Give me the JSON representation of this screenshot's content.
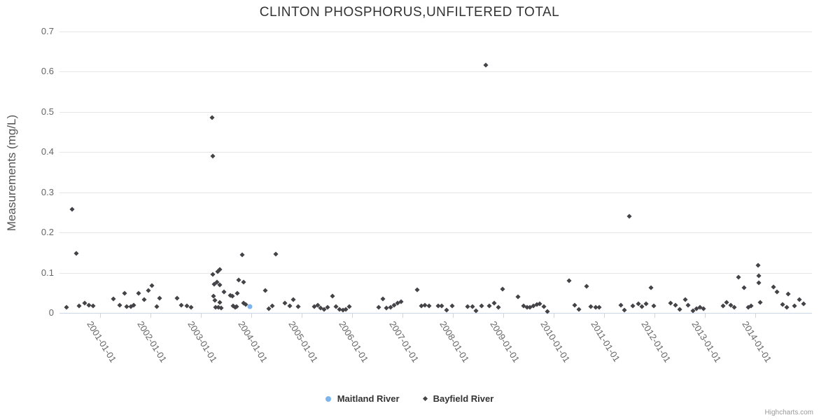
{
  "chart": {
    "credits_label": "Highcharts.com"
  },
  "chart_data": {
    "type": "scatter",
    "title": "CLINTON PHOSPHORUS,UNFILTERED TOTAL",
    "xlabel": "",
    "ylabel": "Measurements (mg/L)",
    "ylim": [
      0,
      0.7
    ],
    "yticks": [
      0,
      0.1,
      0.2,
      0.3,
      0.4,
      0.5,
      0.6,
      0.7
    ],
    "xticks": [
      "2001-01-01",
      "2002-01-01",
      "2003-01-01",
      "2004-01-01",
      "2005-01-01",
      "2006-01-01",
      "2007-01-01",
      "2008-01-01",
      "2009-01-01",
      "2010-01-01",
      "2011-01-01",
      "2012-01-01",
      "2013-01-01",
      "2014-01-01"
    ],
    "x_unit": "decimal-year",
    "grid": "horizontal-only",
    "legend_position": "bottom-center",
    "series": [
      {
        "name": "Maitland River",
        "color": "#7cb5ec",
        "marker": "circle",
        "points": [
          [
            2003.97,
            0.015
          ]
        ]
      },
      {
        "name": "Bayfield River",
        "color": "#434348",
        "marker": "diamond",
        "points": [
          [
            2000.33,
            0.014
          ],
          [
            2000.44,
            0.258
          ],
          [
            2000.53,
            0.148
          ],
          [
            2000.58,
            0.017
          ],
          [
            2000.69,
            0.024
          ],
          [
            2000.78,
            0.019
          ],
          [
            2000.86,
            0.017
          ],
          [
            2001.26,
            0.035
          ],
          [
            2001.39,
            0.019
          ],
          [
            2001.49,
            0.049
          ],
          [
            2001.53,
            0.016
          ],
          [
            2001.61,
            0.016
          ],
          [
            2001.67,
            0.019
          ],
          [
            2001.76,
            0.049
          ],
          [
            2001.88,
            0.033
          ],
          [
            2001.96,
            0.056
          ],
          [
            2002.03,
            0.068
          ],
          [
            2002.13,
            0.016
          ],
          [
            2002.18,
            0.037
          ],
          [
            2002.53,
            0.037
          ],
          [
            2002.61,
            0.019
          ],
          [
            2002.72,
            0.017
          ],
          [
            2002.81,
            0.014
          ],
          [
            2003.22,
            0.485
          ],
          [
            2003.24,
            0.39
          ],
          [
            2003.24,
            0.096
          ],
          [
            2003.26,
            0.071
          ],
          [
            2003.25,
            0.042
          ],
          [
            2003.28,
            0.031
          ],
          [
            2003.29,
            0.014
          ],
          [
            2003.32,
            0.077
          ],
          [
            2003.33,
            0.103
          ],
          [
            2003.35,
            0.014
          ],
          [
            2003.38,
            0.108
          ],
          [
            2003.38,
            0.07
          ],
          [
            2003.38,
            0.026
          ],
          [
            2003.4,
            0.012
          ],
          [
            2003.46,
            0.052
          ],
          [
            2003.58,
            0.044
          ],
          [
            2003.63,
            0.042
          ],
          [
            2003.64,
            0.017
          ],
          [
            2003.68,
            0.014
          ],
          [
            2003.71,
            0.016
          ],
          [
            2003.72,
            0.049
          ],
          [
            2003.75,
            0.082
          ],
          [
            2003.82,
            0.145
          ],
          [
            2003.85,
            0.077
          ],
          [
            2003.85,
            0.024
          ],
          [
            2003.89,
            0.021
          ],
          [
            2004.28,
            0.056
          ],
          [
            2004.35,
            0.01
          ],
          [
            2004.42,
            0.017
          ],
          [
            2004.49,
            0.146
          ],
          [
            2004.67,
            0.024
          ],
          [
            2004.76,
            0.017
          ],
          [
            2004.83,
            0.033
          ],
          [
            2004.93,
            0.016
          ],
          [
            2005.25,
            0.016
          ],
          [
            2005.32,
            0.019
          ],
          [
            2005.38,
            0.012
          ],
          [
            2005.44,
            0.009
          ],
          [
            2005.51,
            0.014
          ],
          [
            2005.61,
            0.042
          ],
          [
            2005.68,
            0.016
          ],
          [
            2005.75,
            0.009
          ],
          [
            2005.82,
            0.007
          ],
          [
            2005.88,
            0.009
          ],
          [
            2005.94,
            0.016
          ],
          [
            2006.53,
            0.014
          ],
          [
            2006.61,
            0.035
          ],
          [
            2006.68,
            0.012
          ],
          [
            2006.76,
            0.014
          ],
          [
            2006.83,
            0.019
          ],
          [
            2006.9,
            0.024
          ],
          [
            2006.97,
            0.028
          ],
          [
            2007.29,
            0.057
          ],
          [
            2007.38,
            0.017
          ],
          [
            2007.44,
            0.019
          ],
          [
            2007.53,
            0.017
          ],
          [
            2007.71,
            0.017
          ],
          [
            2007.78,
            0.017
          ],
          [
            2007.88,
            0.007
          ],
          [
            2007.99,
            0.017
          ],
          [
            2008.29,
            0.016
          ],
          [
            2008.39,
            0.016
          ],
          [
            2008.46,
            0.005
          ],
          [
            2008.57,
            0.017
          ],
          [
            2008.65,
            0.617
          ],
          [
            2008.72,
            0.017
          ],
          [
            2008.82,
            0.024
          ],
          [
            2008.9,
            0.014
          ],
          [
            2008.99,
            0.059
          ],
          [
            2009.29,
            0.04
          ],
          [
            2009.4,
            0.017
          ],
          [
            2009.47,
            0.014
          ],
          [
            2009.53,
            0.014
          ],
          [
            2009.6,
            0.017
          ],
          [
            2009.67,
            0.021
          ],
          [
            2009.72,
            0.023
          ],
          [
            2009.81,
            0.016
          ],
          [
            2009.88,
            0.003
          ],
          [
            2010.31,
            0.08
          ],
          [
            2010.42,
            0.019
          ],
          [
            2010.5,
            0.009
          ],
          [
            2010.65,
            0.066
          ],
          [
            2010.74,
            0.016
          ],
          [
            2010.83,
            0.014
          ],
          [
            2010.9,
            0.014
          ],
          [
            2011.33,
            0.019
          ],
          [
            2011.4,
            0.007
          ],
          [
            2011.5,
            0.24
          ],
          [
            2011.57,
            0.017
          ],
          [
            2011.68,
            0.022
          ],
          [
            2011.75,
            0.016
          ],
          [
            2011.83,
            0.022
          ],
          [
            2011.93,
            0.063
          ],
          [
            2011.99,
            0.017
          ],
          [
            2012.32,
            0.024
          ],
          [
            2012.42,
            0.019
          ],
          [
            2012.5,
            0.009
          ],
          [
            2012.61,
            0.033
          ],
          [
            2012.67,
            0.019
          ],
          [
            2012.76,
            0.005
          ],
          [
            2012.83,
            0.01
          ],
          [
            2012.9,
            0.014
          ],
          [
            2012.97,
            0.01
          ],
          [
            2013.36,
            0.017
          ],
          [
            2013.43,
            0.026
          ],
          [
            2013.51,
            0.019
          ],
          [
            2013.58,
            0.014
          ],
          [
            2013.67,
            0.089
          ],
          [
            2013.78,
            0.063
          ],
          [
            2013.86,
            0.014
          ],
          [
            2013.92,
            0.017
          ],
          [
            2014.06,
            0.118
          ],
          [
            2014.07,
            0.092
          ],
          [
            2014.07,
            0.075
          ],
          [
            2014.1,
            0.026
          ],
          [
            2014.36,
            0.064
          ],
          [
            2014.43,
            0.052
          ],
          [
            2014.54,
            0.021
          ],
          [
            2014.63,
            0.014
          ],
          [
            2014.65,
            0.047
          ],
          [
            2014.78,
            0.017
          ],
          [
            2014.88,
            0.033
          ],
          [
            2014.96,
            0.022
          ]
        ]
      }
    ]
  },
  "colors": {
    "series_maitland": "#7cb5ec",
    "series_bayfield": "#434348",
    "grid": "#e6e6e6",
    "axis_line": "#ccd6eb",
    "title_text": "#333333",
    "axis_label_text": "#666666",
    "credits_text": "#999999"
  }
}
